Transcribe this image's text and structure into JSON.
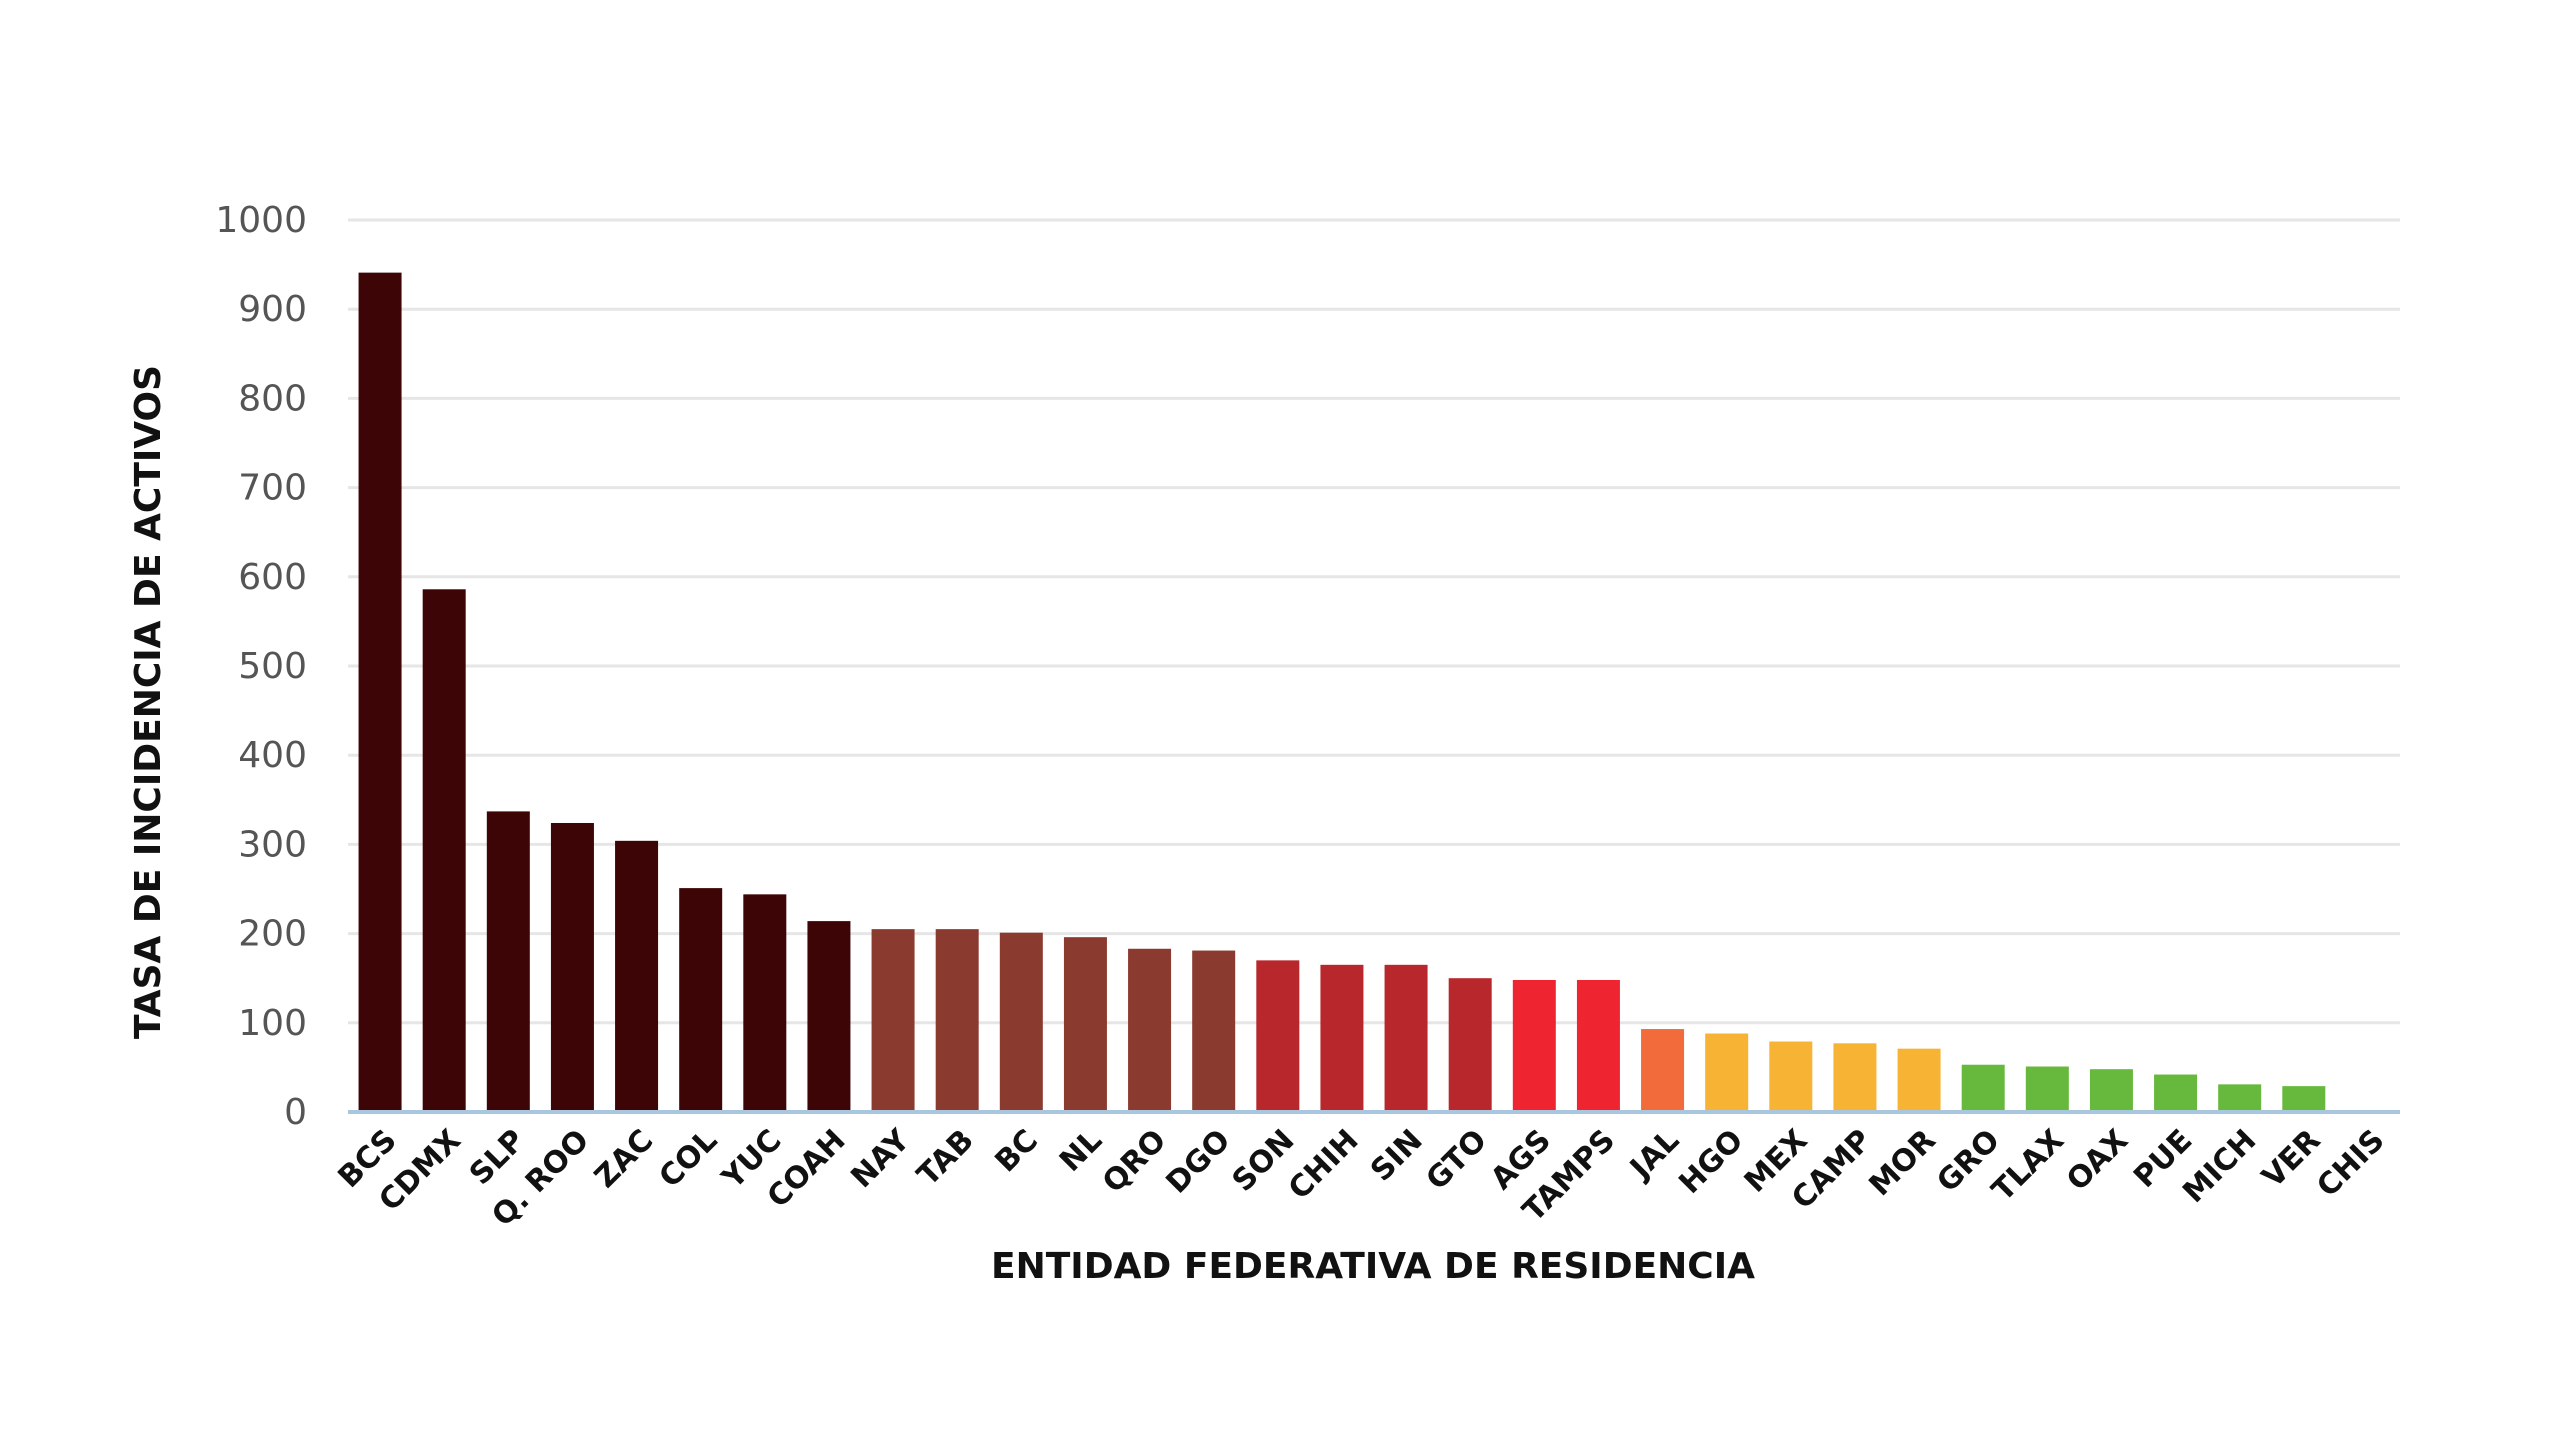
{
  "chart_data": {
    "type": "bar",
    "xlabel": "ENTIDAD FEDERATIVA DE RESIDENCIA",
    "ylabel": "TASA DE INCIDENCIA DE ACTIVOS",
    "ylim": [
      0,
      1000
    ],
    "yticks": [
      0,
      100,
      200,
      300,
      400,
      500,
      600,
      700,
      800,
      900,
      1000
    ],
    "grid": true,
    "categories": [
      "BCS",
      "CDMX",
      "SLP",
      "Q. ROO",
      "ZAC",
      "COL",
      "YUC",
      "COAH",
      "NAY",
      "TAB",
      "BC",
      "NL",
      "QRO",
      "DGO",
      "SON",
      "CHIH",
      "SIN",
      "GTO",
      "AGS",
      "TAMPS",
      "JAL",
      "HGO",
      "MEX",
      "CAMP",
      "MOR",
      "GRO",
      "TLAX",
      "OAX",
      "PUE",
      "MICH",
      "VER",
      "CHIS"
    ],
    "values": [
      941,
      586,
      337,
      324,
      304,
      251,
      244,
      214,
      205,
      205,
      201,
      196,
      183,
      181,
      170,
      165,
      165,
      150,
      148,
      148,
      93,
      88,
      79,
      77,
      71,
      53,
      51,
      48,
      42,
      31,
      29,
      2
    ],
    "colors": [
      "#3d0505",
      "#3d0505",
      "#3d0505",
      "#3d0505",
      "#3d0505",
      "#3d0505",
      "#3d0505",
      "#3d0505",
      "#8b3a2f",
      "#8b3a2f",
      "#8b3a2f",
      "#8b3a2f",
      "#8b3a2f",
      "#8b3a2f",
      "#b8272c",
      "#b8272c",
      "#b8272c",
      "#b8272c",
      "#ee2530",
      "#ee2530",
      "#f26b3a",
      "#f7b334",
      "#f7b334",
      "#f7b334",
      "#f7b334",
      "#66b93c",
      "#66b93c",
      "#66b93c",
      "#66b93c",
      "#66b93c",
      "#66b93c",
      "#a9bfd0"
    ],
    "gridColor": "#e6e6e6",
    "axisColor": "#a9c6df"
  }
}
